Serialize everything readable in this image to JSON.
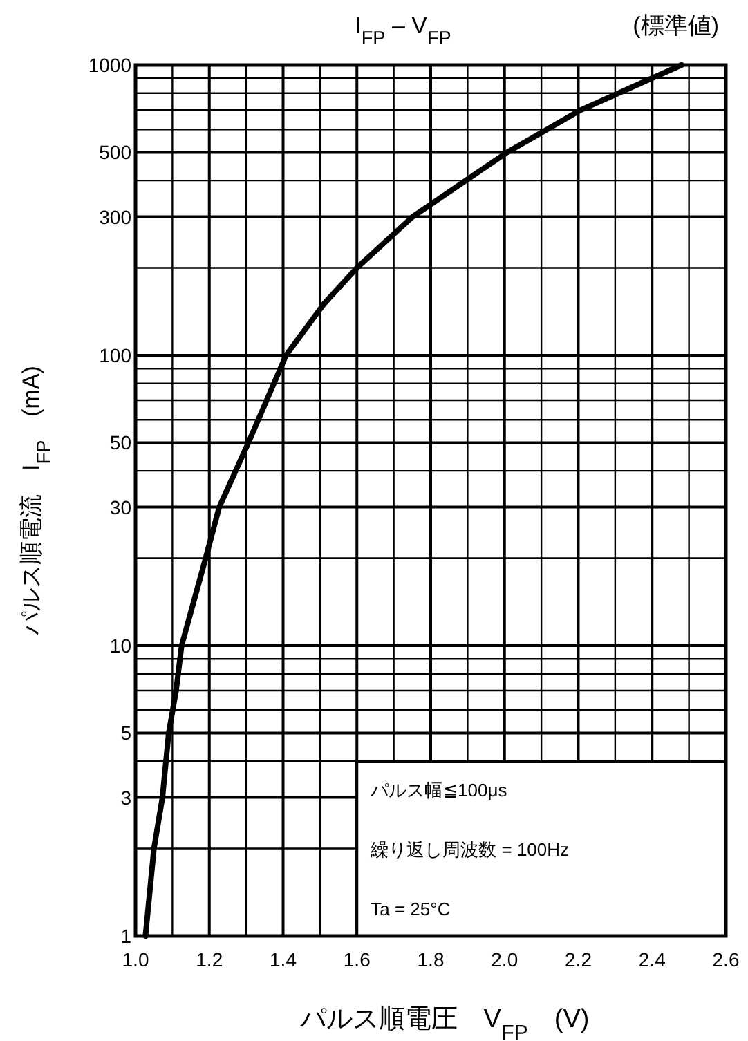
{
  "chart_data": {
    "type": "line",
    "title": "I$_{FP}$ – V$_{FP}$",
    "subtitle": "(標準値)",
    "xlabel": "パルス順電圧　V$_{FP}$　(V)",
    "ylabel": "パルス順電流　I$_{FP}$　(mA)",
    "log": "y",
    "xlim": [
      1.0,
      2.6
    ],
    "ylim": [
      1,
      1000
    ],
    "xticks": [
      {
        "value": 1,
        "label": "1.0"
      },
      1.2,
      1.4,
      1.6,
      1.8,
      {
        "value": 2,
        "label": "2.0"
      },
      2.2,
      2.4,
      2.6
    ],
    "yticks": [
      1,
      3,
      5,
      10,
      30,
      50,
      100,
      300,
      500,
      1000
    ],
    "grid": true,
    "marker": "none",
    "line_style": "solid",
    "annotations": [
      "パルス幅≦100μs",
      "繰り返し周波数 = 100Hz",
      "Ta = 25°C"
    ],
    "series": [
      {
        "color": "#000000",
        "x": [
          1.027,
          1.05,
          1.073,
          1.09,
          1.11,
          1.125,
          1.19,
          1.227,
          1.306,
          1.408,
          1.51,
          1.6,
          1.751,
          2.007,
          2.207,
          2.48
        ],
        "values": [
          1,
          2,
          3,
          5,
          7,
          10,
          20,
          30,
          50,
          100,
          150,
          200,
          300,
          500,
          700,
          1000
        ]
      }
    ]
  }
}
